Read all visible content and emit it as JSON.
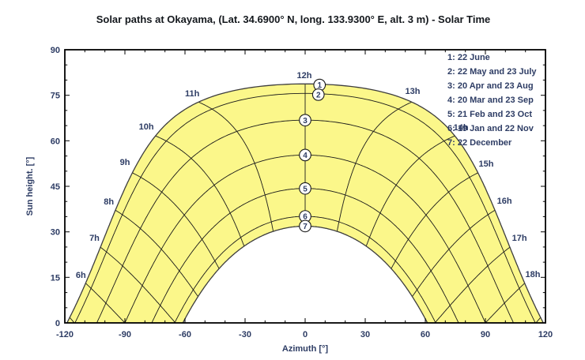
{
  "chart_data": {
    "type": "line",
    "title": "Solar paths at Okayama, (Lat. 34.6900° N, long. 133.9300° E, alt. 3 m) - Solar Time",
    "xlabel": "Azimuth [°]",
    "ylabel": "Sun height. [°]",
    "xlim": [
      -120,
      120
    ],
    "ylim": [
      0,
      90
    ],
    "x_major_ticks": [
      -120,
      -90,
      -60,
      -30,
      0,
      30,
      60,
      90,
      120
    ],
    "x_minor_step": 10,
    "y_major_ticks": [
      0,
      15,
      30,
      45,
      60,
      75,
      90
    ],
    "y_minor_step": 5,
    "latitude_deg": 34.69,
    "curves": [
      {
        "id": "1",
        "label": "22 June",
        "declination_deg": 23.44,
        "noon_height_deg": 78.8,
        "marker_azimuth_deg": 7.2,
        "marker_height_deg": 78.4
      },
      {
        "id": "2",
        "label": "22 May and 23 July",
        "declination_deg": 20.3,
        "noon_height_deg": 75.6,
        "marker_azimuth_deg": 6.6,
        "marker_height_deg": 75.2
      },
      {
        "id": "3",
        "label": "20 Apr and 23 Aug",
        "declination_deg": 11.5,
        "noon_height_deg": 66.8,
        "marker_azimuth_deg": 0,
        "marker_height_deg": 66.8
      },
      {
        "id": "4",
        "label": "20 Mar and 23 Sep",
        "declination_deg": 0.0,
        "noon_height_deg": 55.3,
        "marker_azimuth_deg": 0,
        "marker_height_deg": 55.3
      },
      {
        "id": "5",
        "label": "21 Feb and 23 Oct",
        "declination_deg": -11.0,
        "noon_height_deg": 44.3,
        "marker_azimuth_deg": 0,
        "marker_height_deg": 44.3
      },
      {
        "id": "6",
        "label": "19 Jan and 22 Nov",
        "declination_deg": -20.2,
        "noon_height_deg": 35.1,
        "marker_azimuth_deg": 0,
        "marker_height_deg": 35.1
      },
      {
        "id": "7",
        "label": "22 December",
        "declination_deg": -23.44,
        "noon_height_deg": 31.9,
        "marker_azimuth_deg": 0,
        "marker_height_deg": 31.9
      }
    ],
    "hour_lines": {
      "first_hour": 5,
      "last_hour": 19,
      "noon_hour": 12
    },
    "hour_labels": [
      {
        "label": "6h",
        "azimuth_deg": -112.0,
        "height_deg": 15.9
      },
      {
        "label": "7h",
        "azimuth_deg": -105.2,
        "height_deg": 28.1
      },
      {
        "label": "8h",
        "azimuth_deg": -98.0,
        "height_deg": 40.1
      },
      {
        "label": "9h",
        "azimuth_deg": -90.0,
        "height_deg": 53.1
      },
      {
        "label": "10h",
        "azimuth_deg": -79.3,
        "height_deg": 64.8
      },
      {
        "label": "11h",
        "azimuth_deg": -56.4,
        "height_deg": 75.7
      },
      {
        "label": "12h",
        "azimuth_deg": -0.4,
        "height_deg": 81.7
      },
      {
        "label": "13h",
        "azimuth_deg": 53.7,
        "height_deg": 76.5
      },
      {
        "label": "14h",
        "azimuth_deg": 77.8,
        "height_deg": 64.5
      },
      {
        "label": "15h",
        "azimuth_deg": 90.4,
        "height_deg": 52.6
      },
      {
        "label": "16h",
        "azimuth_deg": 99.5,
        "height_deg": 40.3
      },
      {
        "label": "17h",
        "azimuth_deg": 107.0,
        "height_deg": 28.1
      },
      {
        "label": "18h",
        "azimuth_deg": 113.7,
        "height_deg": 16.1
      }
    ],
    "legend_items": [
      "1: 22 June",
      "2: 22 May and 23 July",
      "3: 20 Apr and 23 Aug",
      "4: 20 Mar and 23 Sep",
      "5: 21 Feb and 23 Oct",
      "6: 19 Jan and 22 Nov",
      "7: 22 December"
    ],
    "legend_position": "top-right",
    "grid": false,
    "colors": {
      "band": "#FBF78A",
      "line": "#1a1a1a",
      "outer_curve": "#3d3d3d",
      "text": "#2d3c64",
      "title": "#14181d",
      "frame": "#000000",
      "marker_fill": "#ffffff"
    }
  }
}
